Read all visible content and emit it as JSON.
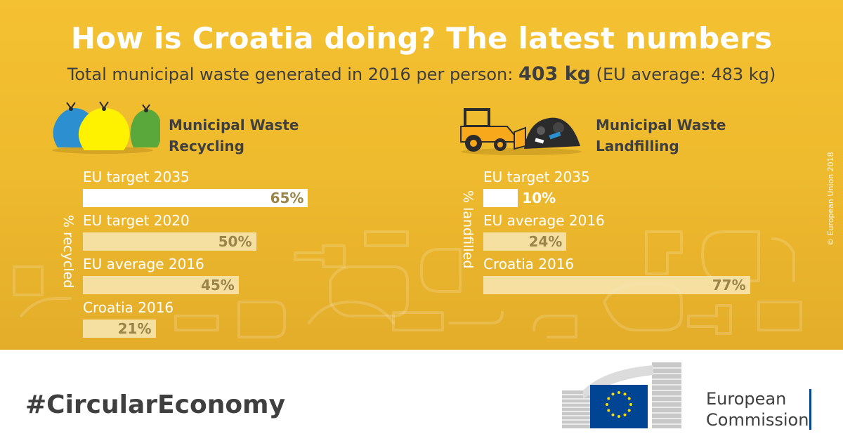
{
  "title": "How is Croatia doing? The latest numbers",
  "subtitle": {
    "prefix": "Total municipal waste generated in 2016 per person: ",
    "value": "403 kg",
    "suffix": " (EU average: 483 kg)"
  },
  "chart_data": [
    {
      "type": "bar",
      "title": "Municipal Waste Recycling",
      "title_lines": [
        "Municipal Waste",
        "Recycling"
      ],
      "ylabel": "% recycled",
      "categories": [
        "EU target 2035",
        "EU target 2020",
        "EU average 2016",
        "Croatia 2016"
      ],
      "values": [
        65,
        50,
        45,
        21
      ],
      "value_labels": [
        "65%",
        "50%",
        "45%",
        "21%"
      ],
      "xlim": [
        0,
        100
      ]
    },
    {
      "type": "bar",
      "title": "Municipal Waste Landfilling",
      "title_lines": [
        "Municipal Waste",
        "Landfilling"
      ],
      "ylabel": "% landfilled",
      "categories": [
        "EU target 2035",
        "EU average 2016",
        "Croatia 2016"
      ],
      "values": [
        10,
        24,
        77
      ],
      "value_labels": [
        "10%",
        "24%",
        "77%"
      ],
      "xlim": [
        0,
        100
      ]
    }
  ],
  "colors": {
    "background": "#f4c132",
    "bar_primary": "#ffffff",
    "bar_secondary": "#f8e7b6",
    "value_text": "#9a8448",
    "heading_text": "#3f3f3f",
    "eu_blue": "#004494",
    "eu_star": "#ffdd00"
  },
  "icons": [
    "garbage-bags-icon",
    "bulldozer-icon",
    "eu-flag-icon",
    "commission-building-icon"
  ],
  "hashtag": "#CircularEconomy",
  "copyright": "© European Union 2018",
  "logo": {
    "line1": "European",
    "line2": "Commission"
  }
}
